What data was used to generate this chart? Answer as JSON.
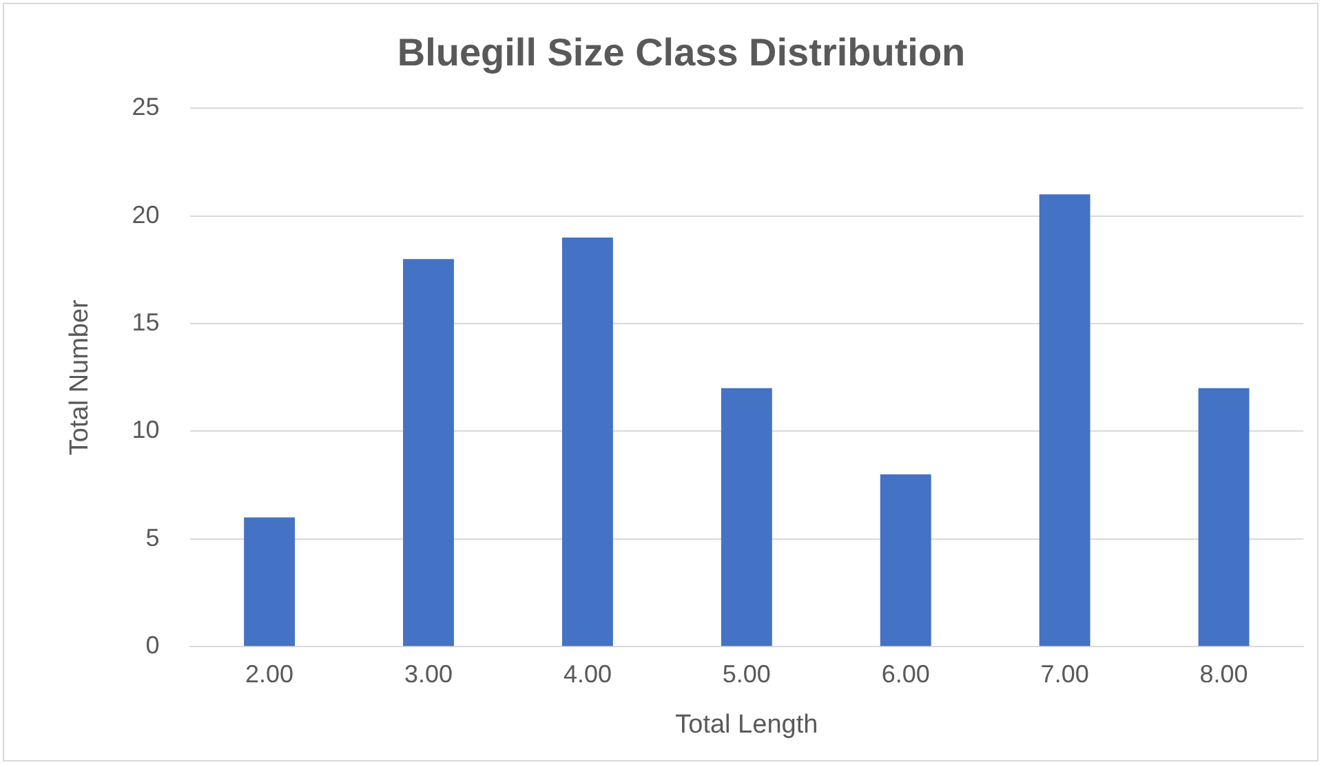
{
  "chart_data": {
    "type": "bar",
    "title": "Bluegill Size Class Distribution",
    "xlabel": "Total Length",
    "ylabel": "Total Number",
    "categories": [
      "2.00",
      "3.00",
      "4.00",
      "5.00",
      "6.00",
      "7.00",
      "8.00"
    ],
    "values": [
      6,
      18,
      19,
      12,
      8,
      21,
      12
    ],
    "color": "#4472c4",
    "ylim": [
      0,
      25
    ],
    "yticks": [
      0,
      5,
      10,
      15,
      20,
      25
    ],
    "grid": "y",
    "legend": false
  }
}
